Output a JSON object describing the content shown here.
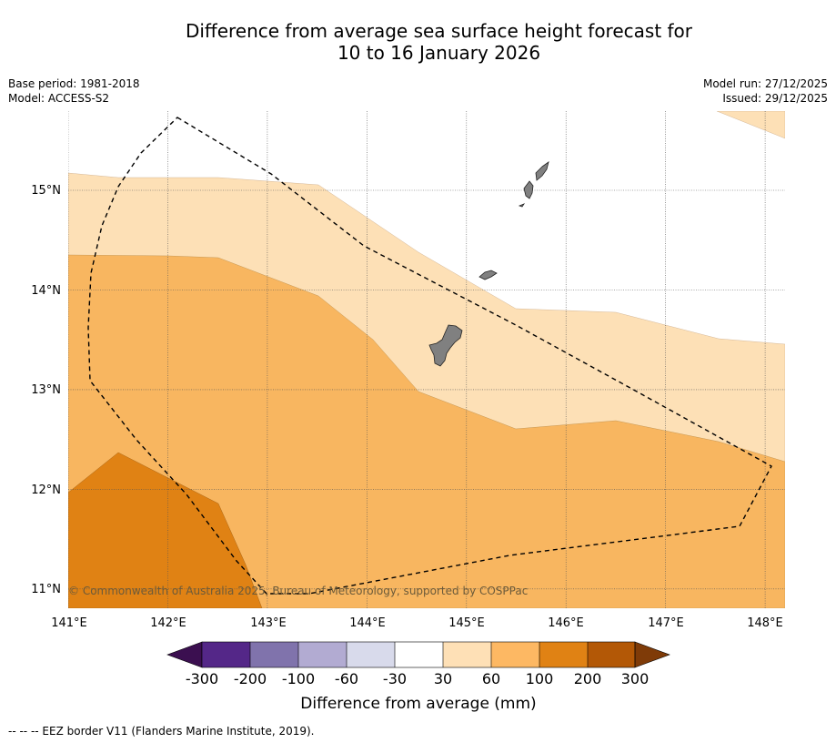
{
  "title": {
    "line1": "Difference from average sea surface height forecast for",
    "line2": "10 to 16 January 2026"
  },
  "meta_left": {
    "base_period": "Base period: 1981-2018",
    "model": "Model: ACCESS-S2"
  },
  "meta_right": {
    "model_run": "Model run: 27/12/2025",
    "issued": "Issued: 29/12/2025"
  },
  "map": {
    "lon_range": [
      141.0,
      148.2
    ],
    "lat_range": [
      10.8,
      15.8
    ],
    "x_ticks": [
      {
        "value": 141,
        "label": "141°E"
      },
      {
        "value": 142,
        "label": "142°E"
      },
      {
        "value": 143,
        "label": "143°E"
      },
      {
        "value": 144,
        "label": "144°E"
      },
      {
        "value": 145,
        "label": "145°E"
      },
      {
        "value": 146,
        "label": "146°E"
      },
      {
        "value": 147,
        "label": "147°E"
      },
      {
        "value": 148,
        "label": "148°E"
      }
    ],
    "y_ticks": [
      {
        "value": 15,
        "label": "15°N"
      },
      {
        "value": 14,
        "label": "14°N"
      },
      {
        "value": 13,
        "label": "13°N"
      },
      {
        "value": 12,
        "label": "12°N"
      },
      {
        "value": 11,
        "label": "11°N"
      }
    ],
    "copyright": "© Commonwealth of Australia 2025, Bureau of Meteorology, supported by COSPPac",
    "colors": {
      "30_60": "#fde0b6",
      "60_100": "#f8b660",
      "100_200": "#e08214",
      "land": "#808080"
    }
  },
  "colorbar": {
    "colors": [
      "#3b0f50",
      "#542788",
      "#8073ac",
      "#b2abd2",
      "#d8daeb",
      "#ffffff",
      "#fee0b6",
      "#fdb863",
      "#e08214",
      "#b35806",
      "#7f3b08"
    ],
    "labels": [
      "-300",
      "-200",
      "-100",
      "-60",
      "-30",
      "30",
      "60",
      "100",
      "200",
      "300"
    ],
    "title": "Difference from average (mm)"
  },
  "footer": "--  --  -- EEZ border V11 (Flanders Marine Institute, 2019)."
}
